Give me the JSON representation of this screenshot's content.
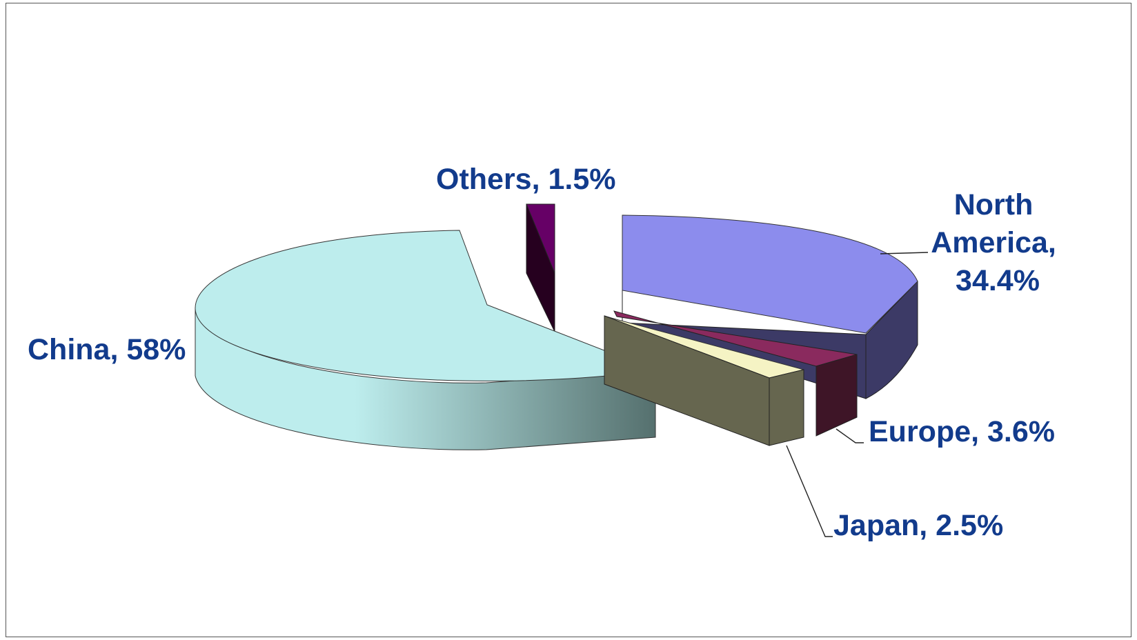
{
  "chart_data": {
    "type": "pie",
    "title": "",
    "style": "3d-exploded",
    "slices": [
      {
        "label": "North America",
        "value": 34.4,
        "label_lines": [
          "North",
          "America,",
          "34.4%"
        ],
        "color": "#8c8ced"
      },
      {
        "label": "Europe",
        "value": 3.6,
        "label_lines": [
          "Europe, 3.6%"
        ],
        "color": "#8a2a5e"
      },
      {
        "label": "Japan",
        "value": 2.5,
        "label_lines": [
          "Japan, 2.5%"
        ],
        "color": "#f5f3c4"
      },
      {
        "label": "China",
        "value": 58,
        "label_lines": [
          "China, 58%"
        ],
        "color": "#bdeded"
      },
      {
        "label": "Others",
        "value": 1.5,
        "label_lines": [
          "Others, 1.5%"
        ],
        "color": "#660066"
      }
    ],
    "legend": "none",
    "data_labels": "category, percent"
  }
}
